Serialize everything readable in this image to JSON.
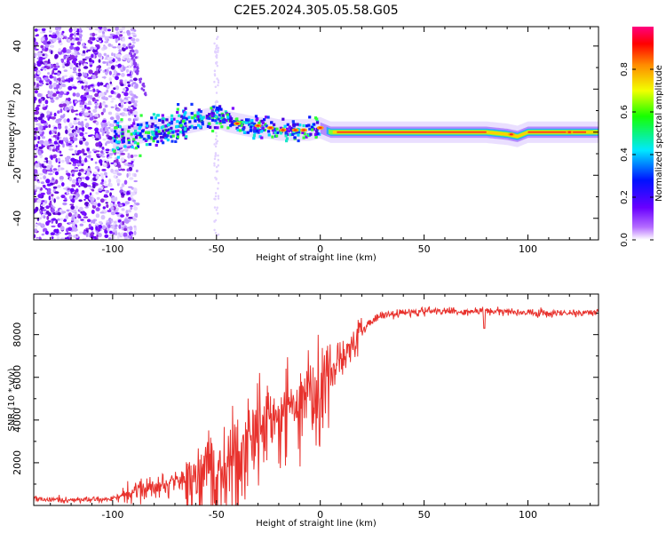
{
  "title": "C2E5.2024.305.05.58.G05",
  "chart_data": [
    {
      "type": "heatmap",
      "xlabel": "Height of straight line (km)",
      "ylabel": "Frequency (Hz)",
      "xlim": [
        -138,
        134
      ],
      "ylim": [
        -50,
        49
      ],
      "xticks": [
        -100,
        -50,
        0,
        50,
        100
      ],
      "yticks": [
        -40,
        -20,
        0,
        20,
        40
      ],
      "colorbar": {
        "label": "Normalized spectral amplitude",
        "range": [
          0,
          1
        ],
        "ticks": [
          "0.0",
          "0.2",
          "0.4",
          "0.6",
          "0.8"
        ],
        "colormap": "rainbow (white-purple-blue-cyan-green-yellow-orange-red-magenta)"
      },
      "ridge": {
        "x": [
          -100,
          -95,
          -90,
          -85,
          -80,
          -75,
          -70,
          -65,
          -60,
          -55,
          -50,
          -45,
          -40,
          -35,
          -30,
          -25,
          -20,
          -15,
          -10,
          -5,
          0,
          5,
          20,
          40,
          60,
          75,
          80,
          90,
          95,
          100,
          120,
          134
        ],
        "y": [
          -3,
          -2,
          -1,
          0,
          1,
          2,
          3,
          4,
          5,
          6,
          7,
          5,
          4,
          3,
          2,
          2,
          1,
          1,
          1,
          1,
          2,
          0,
          0,
          0,
          0,
          0,
          0,
          -1,
          -2,
          0,
          0,
          0
        ]
      }
    },
    {
      "type": "line",
      "xlabel": "Height of straight line (km)",
      "ylabel": "SNR (10 * v/v)",
      "xlim": [
        -138,
        134
      ],
      "ylim": [
        0,
        9900
      ],
      "xticks": [
        -100,
        -50,
        0,
        50,
        100
      ],
      "yticks": [
        2000,
        4000,
        6000,
        8000
      ],
      "line_color": "#e8322d",
      "series": [
        {
          "x": [
            -138,
            -120,
            -100,
            -90,
            -80,
            -70,
            -60,
            -55,
            -50,
            -45,
            -40,
            -35,
            -30,
            -25,
            -20,
            -15,
            -10,
            -5,
            0,
            5,
            10,
            15,
            20,
            25,
            30,
            40,
            50,
            60,
            70,
            80,
            90,
            100,
            110,
            120,
            134
          ],
          "values": [
            300,
            250,
            300,
            600,
            800,
            1100,
            1500,
            1800,
            1600,
            2000,
            2600,
            3200,
            3900,
            4100,
            4300,
            4400,
            4800,
            5300,
            5700,
            6200,
            6900,
            7500,
            8100,
            8700,
            8900,
            9000,
            9100,
            9100,
            9050,
            9100,
            9100,
            9000,
            9000,
            9000,
            9050
          ]
        }
      ]
    }
  ]
}
